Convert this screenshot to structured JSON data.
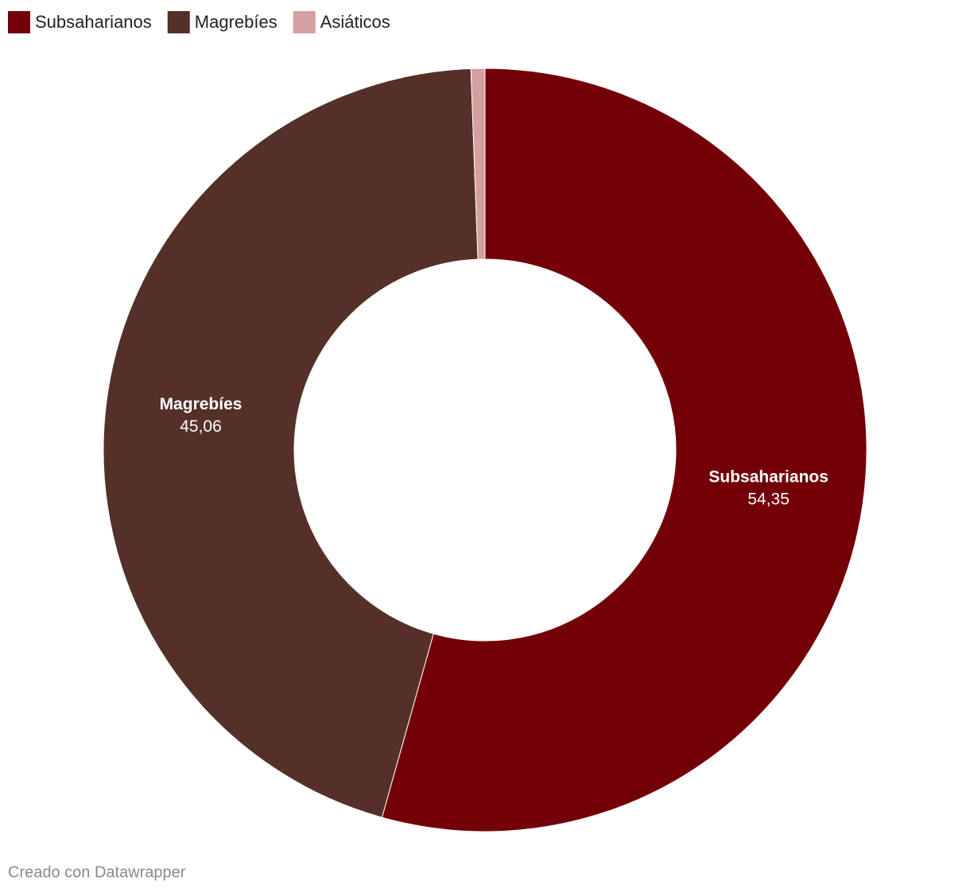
{
  "chart_data": {
    "type": "donut",
    "categories": [
      "Subsaharianos",
      "Magrebíes",
      "Asiáticos"
    ],
    "values": [
      54.35,
      45.06,
      0.59
    ],
    "value_labels": [
      "54,35",
      "45,06",
      null
    ],
    "colors": [
      "#730009",
      "#543028",
      "#d4a0a0"
    ],
    "legend": "top-left",
    "credit": "Creado con Datawrapper"
  }
}
